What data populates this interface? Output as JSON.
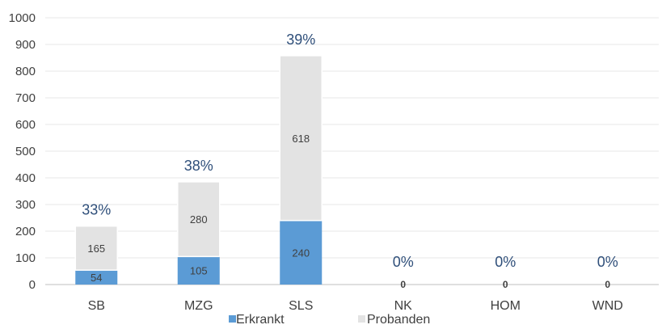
{
  "chart_data": {
    "type": "bar",
    "stacked": true,
    "categories": [
      "SB",
      "MZG",
      "SLS",
      "NK",
      "HOM",
      "WND"
    ],
    "series": [
      {
        "name": "Erkrankt",
        "values": [
          54,
          105,
          240,
          0,
          0,
          0
        ],
        "color": "#5b9bd5"
      },
      {
        "name": "Probanden",
        "values": [
          165,
          280,
          618,
          0,
          0,
          0
        ],
        "color": "#e3e3e3"
      }
    ],
    "segment_labels": {
      "Erkrankt": [
        "54",
        "105",
        "240",
        "0",
        "0",
        "0"
      ],
      "Probanden": [
        "165",
        "280",
        "618",
        "",
        "",
        ""
      ]
    },
    "percent_labels": [
      "33%",
      "38%",
      "39%",
      "0%",
      "0%",
      "0%"
    ],
    "yticks": [
      "0",
      "100",
      "200",
      "300",
      "400",
      "500",
      "600",
      "700",
      "800",
      "900",
      "1000"
    ],
    "ylim": [
      0,
      1000
    ],
    "grid": true,
    "legend_position": "bottom",
    "title": "",
    "xlabel": "",
    "ylabel": ""
  }
}
